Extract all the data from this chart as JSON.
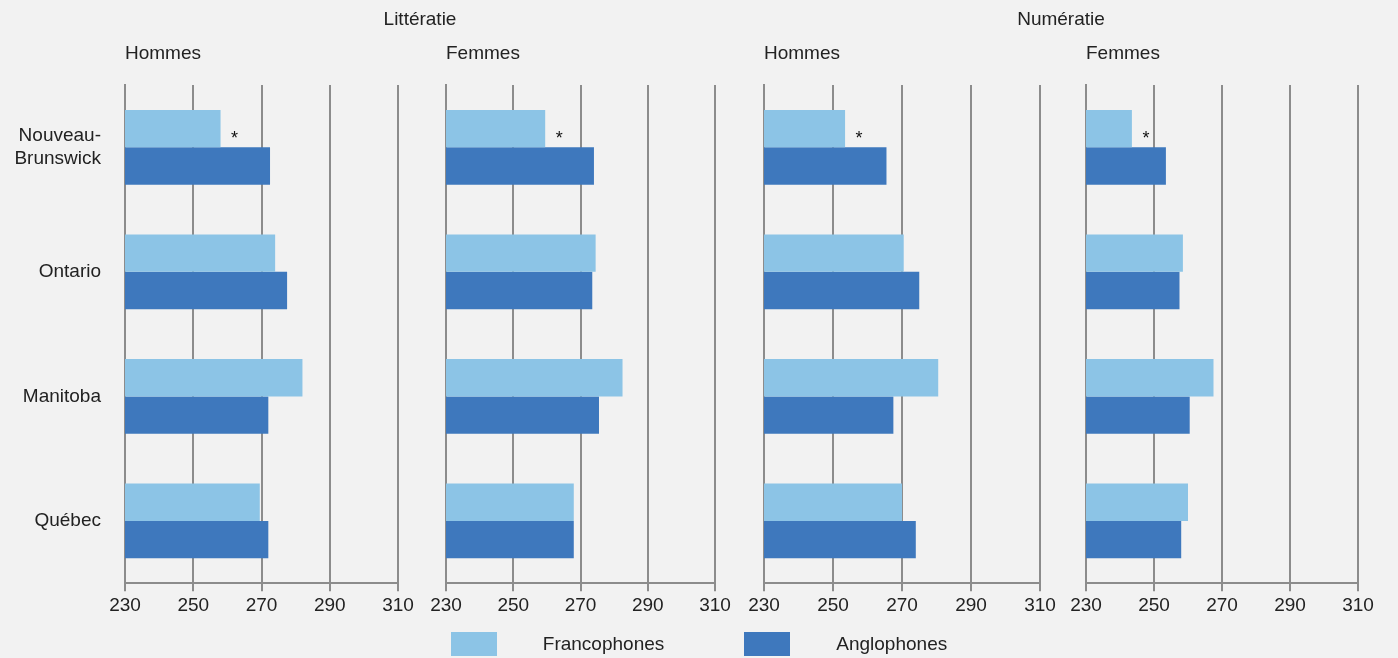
{
  "chart_data": [
    {
      "type": "bar",
      "orientation": "horizontal",
      "title": "Littératie",
      "subtitle": "Hommes",
      "categories": [
        "Nouveau-Brunswick",
        "Ontario",
        "Manitoba",
        "Québec"
      ],
      "series": [
        {
          "name": "Francophones",
          "color": "#8cc4e6",
          "values": [
            258,
            274,
            282,
            269.5
          ]
        },
        {
          "name": "Anglophones",
          "color": "#3e78bd",
          "values": [
            272.5,
            277.5,
            272,
            272
          ]
        }
      ],
      "xlim": [
        230,
        310
      ],
      "xticks": [
        230,
        250,
        270,
        290,
        310
      ],
      "grid": "x",
      "legend": "bottom",
      "annotations": [
        "*"
      ]
    },
    {
      "type": "bar",
      "orientation": "horizontal",
      "subtitle": "Femmes",
      "categories": [
        null,
        null,
        null,
        null
      ],
      "series": [
        {
          "color": "#8cc4e6",
          "values": [
            259.5,
            274.5,
            282.5,
            268
          ]
        },
        {
          "color": "#3e78bd",
          "values": [
            274,
            273.5,
            275.5,
            268
          ]
        }
      ],
      "xlim": [
        230,
        310
      ],
      "xticks": [
        230,
        250,
        270,
        290,
        310
      ],
      "grid": "x",
      "tick_labels": "x",
      "annotations": [
        "*"
      ]
    },
    {
      "type": "bar",
      "orientation": "horizontal",
      "title": "Numératie",
      "subtitle": "Hommes",
      "categories": [
        null,
        null,
        null,
        null
      ],
      "series": [
        {
          "color": "#8cc4e6",
          "values": [
            253.5,
            270.5,
            280.5,
            270
          ]
        },
        {
          "color": "#3e78bd",
          "values": [
            265.5,
            275,
            267.5,
            274
          ]
        }
      ],
      "xlim": [
        230,
        310
      ],
      "xticks": [
        230,
        250,
        270,
        290,
        310
      ],
      "grid": "x",
      "tick_labels": "x",
      "annotations": [
        "*"
      ]
    },
    {
      "type": "bar",
      "orientation": "horizontal",
      "subtitle": "Femmes",
      "categories": [
        null,
        null,
        null,
        null
      ],
      "series": [
        {
          "color": "#8cc4e6",
          "values": [
            243.5,
            258.5,
            267.5,
            260
          ]
        },
        {
          "color": "#3e78bd",
          "values": [
            253.5,
            257.5,
            260.5,
            258
          ]
        }
      ],
      "xlim": [
        230,
        310
      ],
      "xticks": [
        230,
        250,
        270,
        290,
        310
      ],
      "grid": "x",
      "tick_labels": "x",
      "annotations": [
        "*"
      ]
    }
  ]
}
